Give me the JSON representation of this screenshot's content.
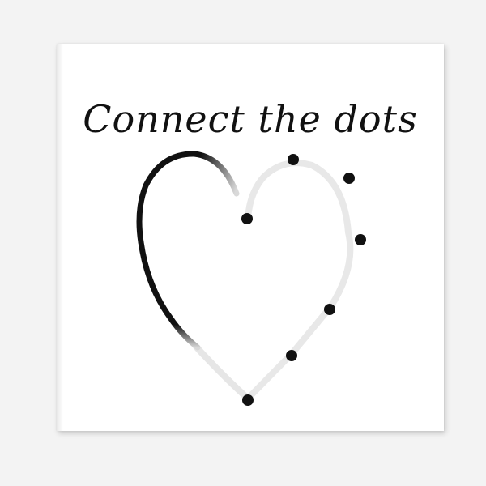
{
  "artwork": {
    "title": "Connect the dots",
    "ink_color": "#111111",
    "faded_color": "#e6e6e6",
    "background_color": "#ffffff",
    "page_background": "#f3f3f3"
  }
}
